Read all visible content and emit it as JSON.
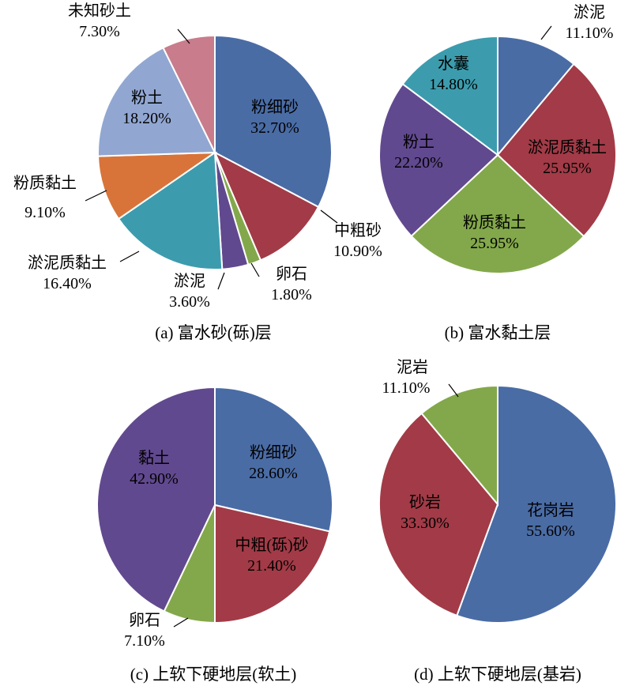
{
  "chart_data": [
    {
      "type": "pie",
      "caption": "(a) 富水砂(砾)层",
      "slices": [
        {
          "label": "粉细砂",
          "value": 32.7,
          "pct": "32.70%",
          "color": "#4A6CA5"
        },
        {
          "label": "中粗砂",
          "value": 10.9,
          "pct": "10.90%",
          "color": "#A23B47"
        },
        {
          "label": "卵石",
          "value": 1.8,
          "pct": "1.80%",
          "color": "#83A84B"
        },
        {
          "label": "淤泥",
          "value": 3.6,
          "pct": "3.60%",
          "color": "#61498F"
        },
        {
          "label": "淤泥质黏土",
          "value": 16.4,
          "pct": "16.40%",
          "color": "#3C9CAE"
        },
        {
          "label": "粉质黏土",
          "value": 9.1,
          "pct": "9.10%",
          "color": "#D8743A"
        },
        {
          "label": "粉土",
          "value": 18.2,
          "pct": "18.20%",
          "color": "#91A7D2"
        },
        {
          "label": "未知砂土",
          "value": 7.3,
          "pct": "7.30%",
          "color": "#C97C8C"
        }
      ]
    },
    {
      "type": "pie",
      "caption": "(b) 富水黏土层",
      "slices": [
        {
          "label": "淤泥",
          "value": 11.1,
          "pct": "11.10%",
          "color": "#4A6CA5"
        },
        {
          "label": "淤泥质黏土",
          "value": 25.95,
          "pct": "25.95%",
          "color": "#A23B47"
        },
        {
          "label": "粉质黏土",
          "value": 25.95,
          "pct": "25.95%",
          "color": "#83A84B"
        },
        {
          "label": "粉土",
          "value": 22.2,
          "pct": "22.20%",
          "color": "#61498F"
        },
        {
          "label": "水囊",
          "value": 14.8,
          "pct": "14.80%",
          "color": "#3C9CAE"
        }
      ]
    },
    {
      "type": "pie",
      "caption": "(c) 上软下硬地层(软土)",
      "slices": [
        {
          "label": "粉细砂",
          "value": 28.6,
          "pct": "28.60%",
          "color": "#4A6CA5"
        },
        {
          "label": "中粗(砾)砂",
          "value": 21.4,
          "pct": "21.40%",
          "color": "#A23B47"
        },
        {
          "label": "卵石",
          "value": 7.1,
          "pct": "7.10%",
          "color": "#83A84B"
        },
        {
          "label": "黏土",
          "value": 42.9,
          "pct": "42.90%",
          "color": "#61498F"
        }
      ]
    },
    {
      "type": "pie",
      "caption": "(d) 上软下硬地层(基岩)",
      "slices": [
        {
          "label": "花岗岩",
          "value": 55.6,
          "pct": "55.60%",
          "color": "#4A6CA5"
        },
        {
          "label": "砂岩",
          "value": 33.3,
          "pct": "33.30%",
          "color": "#A23B47"
        },
        {
          "label": "泥岩",
          "value": 11.1,
          "pct": "11.10%",
          "color": "#83A84B"
        }
      ]
    }
  ]
}
